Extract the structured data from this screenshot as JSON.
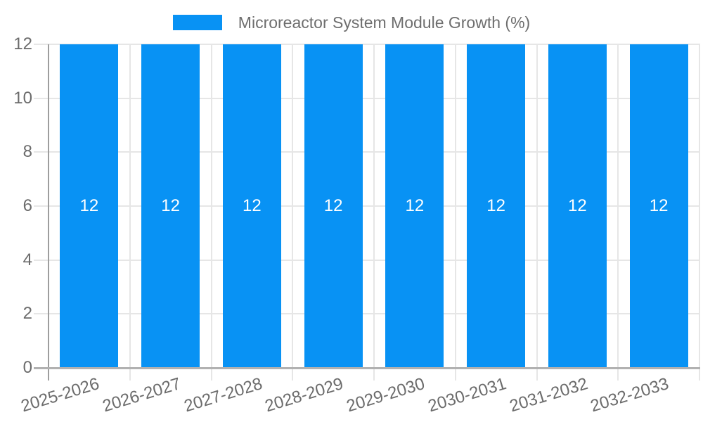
{
  "chart_data": {
    "type": "bar",
    "title": "",
    "legend": {
      "label": "Microreactor System Module Growth (%)",
      "position": "top"
    },
    "categories": [
      "2025-2026",
      "2026-2027",
      "2027-2028",
      "2028-2029",
      "2029-2030",
      "2030-2031",
      "2031-2032",
      "2032-2033"
    ],
    "series": [
      {
        "name": "Microreactor System Module Growth (%)",
        "values": [
          12,
          12,
          12,
          12,
          12,
          12,
          12,
          12
        ],
        "data_labels": [
          "12",
          "12",
          "12",
          "12",
          "12",
          "12",
          "12",
          "12"
        ],
        "color": "#0892f4"
      }
    ],
    "xlabel": "",
    "ylabel": "",
    "yticks": [
      0,
      2,
      4,
      6,
      8,
      10,
      12
    ],
    "ytick_labels": [
      "0",
      "2",
      "4",
      "6",
      "8",
      "10",
      "12"
    ],
    "ylim": [
      0,
      12
    ],
    "grid": true
  },
  "colors": {
    "bar": "#0892f4",
    "gridline": "#e6e6e6",
    "baseline": "#b1b1b1",
    "y_axis": "#9e9e9e",
    "axis_label": "#6b6b6b",
    "legend_label": "#6e6e6e",
    "value_label": "#ffffff",
    "background": "#ffffff"
  }
}
